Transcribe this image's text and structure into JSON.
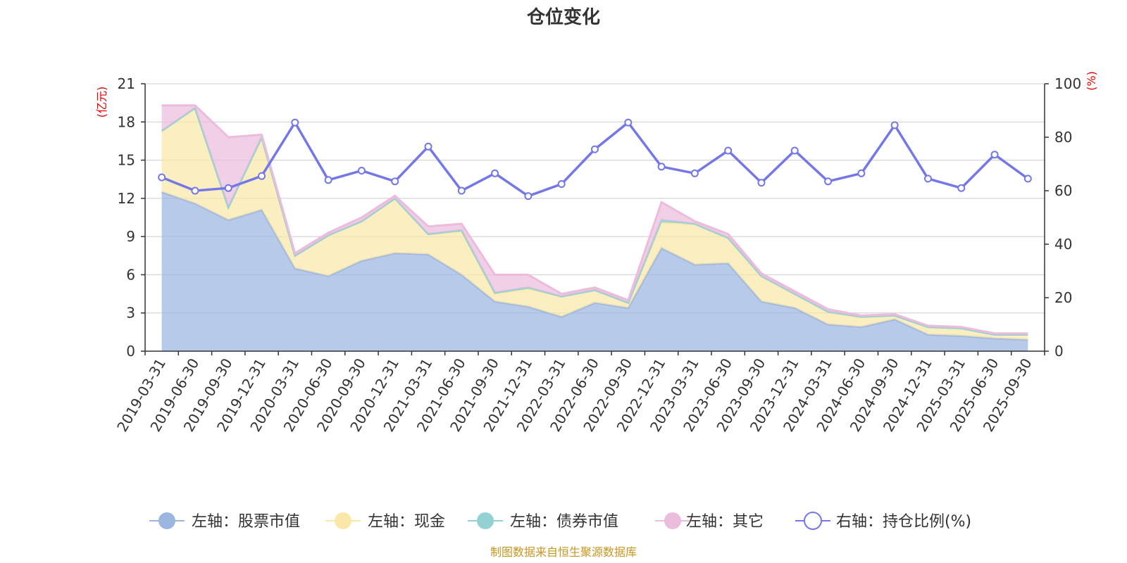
{
  "chart_data": {
    "type": "area",
    "title": "仓位变化",
    "source": "制图数据来自恒生聚源数据库",
    "categories": [
      "2019-03-31",
      "2019-06-30",
      "2019-09-30",
      "2019-12-31",
      "2020-03-31",
      "2020-06-30",
      "2020-09-30",
      "2020-12-31",
      "2021-03-31",
      "2021-06-30",
      "2021-09-30",
      "2021-12-31",
      "2022-03-31",
      "2022-06-30",
      "2022-09-30",
      "2022-12-31",
      "2023-03-31",
      "2023-06-30",
      "2023-09-30",
      "2023-12-31",
      "2024-03-31",
      "2024-06-30",
      "2024-09-30",
      "2024-12-31",
      "2025-03-31",
      "2025-06-30",
      "2025-09-30"
    ],
    "left_axis": {
      "unit": "(亿元)",
      "min": 0,
      "max": 21,
      "ticks": [
        0,
        3,
        6,
        9,
        12,
        15,
        18,
        21
      ]
    },
    "right_axis": {
      "unit": "(%)",
      "min": 0,
      "max": 100,
      "ticks": [
        0,
        20,
        40,
        60,
        80,
        100
      ]
    },
    "series": [
      {
        "name": "左轴：股票市值",
        "axis": "left",
        "stack": true,
        "color": "#9db6e0",
        "values": [
          12.5,
          11.6,
          10.3,
          11.1,
          6.5,
          5.9,
          7.1,
          7.7,
          7.6,
          6.0,
          3.9,
          3.5,
          2.7,
          3.8,
          3.4,
          8.1,
          6.8,
          6.9,
          3.9,
          3.4,
          2.1,
          1.9,
          2.5,
          1.3,
          1.2,
          1.0,
          0.9
        ]
      },
      {
        "name": "左轴：现金",
        "axis": "left",
        "stack": true,
        "color": "#f9e8a8",
        "values": [
          4.8,
          7.5,
          1.0,
          5.7,
          1.0,
          3.2,
          3.1,
          4.3,
          1.6,
          3.4,
          0.6,
          1.4,
          1.6,
          1.0,
          0.4,
          2.0,
          3.2,
          2.0,
          2.0,
          1.1,
          1.0,
          0.8,
          0.3,
          0.6,
          0.6,
          0.3,
          0.4
        ]
      },
      {
        "name": "左轴：债券市值",
        "axis": "left",
        "stack": true,
        "color": "#93d2d2",
        "values": [
          0,
          0,
          0,
          0,
          0,
          0,
          0,
          0,
          0,
          0.1,
          0.1,
          0.1,
          0,
          0,
          0,
          0.2,
          0,
          0,
          0,
          0,
          0,
          0,
          0,
          0,
          0,
          0,
          0
        ]
      },
      {
        "name": "左轴：其它",
        "axis": "left",
        "stack": true,
        "color": "#ecbcdc",
        "values": [
          2.0,
          0.2,
          5.5,
          0.2,
          0.2,
          0.2,
          0.3,
          0.2,
          0.6,
          0.5,
          1.4,
          1.0,
          0.2,
          0.2,
          0.2,
          1.4,
          0.2,
          0.3,
          0.2,
          0.2,
          0.2,
          0.1,
          0.1,
          0.1,
          0.1,
          0.1,
          0.1
        ]
      },
      {
        "name": "右轴：持仓比例(%)",
        "axis": "right",
        "type": "line",
        "color": "#7477e8",
        "values": [
          65,
          60,
          61,
          65.5,
          85.5,
          64,
          67.5,
          63.5,
          76.5,
          60,
          66.5,
          58,
          62.5,
          75.5,
          85.5,
          69,
          66.5,
          75,
          63,
          75,
          63.5,
          66.5,
          84.5,
          64.5,
          61,
          73.5,
          64.5
        ]
      }
    ]
  }
}
